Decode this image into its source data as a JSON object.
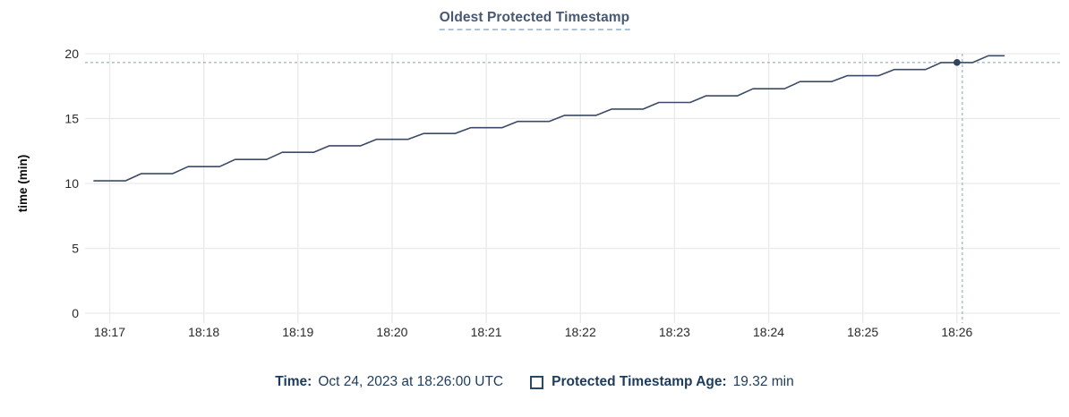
{
  "title": "Oldest Protected Timestamp",
  "chart_data": {
    "type": "line",
    "title": "Oldest Protected Timestamp",
    "xlabel": "",
    "ylabel": "time (min)",
    "ylim": [
      0,
      20
    ],
    "yticks": [
      0,
      5,
      10,
      15,
      20
    ],
    "xticks": [
      "18:17",
      "18:18",
      "18:19",
      "18:20",
      "18:21",
      "18:22",
      "18:23",
      "18:24",
      "18:25",
      "18:26"
    ],
    "grid": true,
    "legend_position": "bottom",
    "series": [
      {
        "name": "Protected Timestamp Age",
        "unit": "min",
        "points": [
          [
            "18:16:50",
            10.2
          ],
          [
            "18:17:00",
            10.2
          ],
          [
            "18:17:10",
            10.2
          ],
          [
            "18:17:20",
            10.75
          ],
          [
            "18:17:30",
            10.75
          ],
          [
            "18:17:40",
            10.75
          ],
          [
            "18:17:50",
            11.3
          ],
          [
            "18:18:00",
            11.3
          ],
          [
            "18:18:10",
            11.3
          ],
          [
            "18:18:20",
            11.85
          ],
          [
            "18:18:30",
            11.85
          ],
          [
            "18:18:40",
            11.85
          ],
          [
            "18:18:50",
            12.4
          ],
          [
            "18:19:00",
            12.4
          ],
          [
            "18:19:10",
            12.4
          ],
          [
            "18:19:20",
            12.9
          ],
          [
            "18:19:30",
            12.9
          ],
          [
            "18:19:40",
            12.9
          ],
          [
            "18:19:50",
            13.4
          ],
          [
            "18:20:00",
            13.4
          ],
          [
            "18:20:10",
            13.4
          ],
          [
            "18:20:20",
            13.85
          ],
          [
            "18:20:30",
            13.85
          ],
          [
            "18:20:40",
            13.85
          ],
          [
            "18:20:50",
            14.3
          ],
          [
            "18:21:00",
            14.3
          ],
          [
            "18:21:10",
            14.3
          ],
          [
            "18:21:20",
            14.78
          ],
          [
            "18:21:30",
            14.78
          ],
          [
            "18:21:40",
            14.78
          ],
          [
            "18:21:50",
            15.25
          ],
          [
            "18:22:00",
            15.25
          ],
          [
            "18:22:10",
            15.25
          ],
          [
            "18:22:20",
            15.73
          ],
          [
            "18:22:30",
            15.73
          ],
          [
            "18:22:40",
            15.73
          ],
          [
            "18:22:50",
            16.24
          ],
          [
            "18:23:00",
            16.24
          ],
          [
            "18:23:10",
            16.24
          ],
          [
            "18:23:20",
            16.75
          ],
          [
            "18:23:30",
            16.75
          ],
          [
            "18:23:40",
            16.75
          ],
          [
            "18:23:50",
            17.3
          ],
          [
            "18:24:00",
            17.3
          ],
          [
            "18:24:10",
            17.3
          ],
          [
            "18:24:20",
            17.85
          ],
          [
            "18:24:30",
            17.85
          ],
          [
            "18:24:40",
            17.85
          ],
          [
            "18:24:50",
            18.3
          ],
          [
            "18:25:00",
            18.3
          ],
          [
            "18:25:10",
            18.3
          ],
          [
            "18:25:20",
            18.78
          ],
          [
            "18:25:30",
            18.78
          ],
          [
            "18:25:40",
            18.78
          ],
          [
            "18:25:50",
            19.32
          ],
          [
            "18:26:00",
            19.32
          ],
          [
            "18:26:10",
            19.32
          ],
          [
            "18:26:20",
            19.84
          ],
          [
            "18:26:30",
            19.84
          ]
        ]
      }
    ],
    "hover": {
      "time": "18:26:00",
      "value": 19.32
    }
  },
  "tooltip": {
    "time_label": "Time:",
    "time_value": "Oct 24, 2023 at 18:26:00 UTC",
    "age_label": "Protected Timestamp Age:",
    "age_value": "19.32 min"
  },
  "colors": {
    "title_text": "#475872",
    "title_underline": "#aec3d6",
    "line": "#3b4a66",
    "hover_dot": "#33425d",
    "grid": "#e9e9e9",
    "crosshair": "#9fb2ba",
    "legend_text": "#1c3b5d",
    "tick_text": "#2a2a2a",
    "axis_label_text": "#0b0b0b"
  }
}
